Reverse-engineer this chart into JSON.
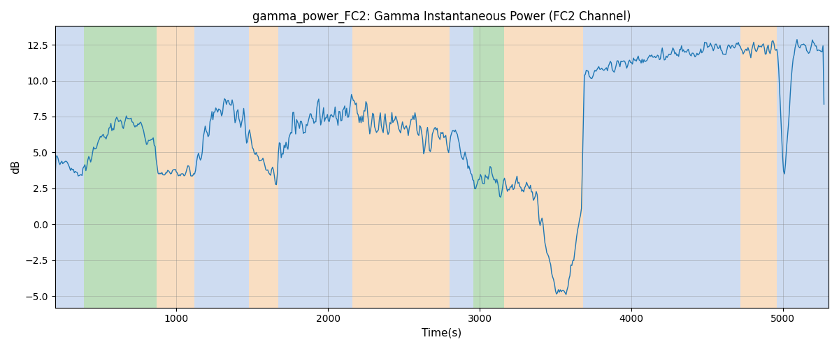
{
  "title": "gamma_power_FC2: Gamma Instantaneous Power (FC2 Channel)",
  "xlabel": "Time(s)",
  "ylabel": "dB",
  "xlim": [
    200,
    5300
  ],
  "ylim": [
    -5.8,
    13.8
  ],
  "figsize": [
    12,
    5
  ],
  "dpi": 100,
  "line_color": "#1f77b4",
  "line_width": 1.0,
  "bg_bands": [
    {
      "xmin": 200,
      "xmax": 390,
      "color": "#aec6e8",
      "alpha": 0.6
    },
    {
      "xmin": 390,
      "xmax": 870,
      "color": "#90c98e",
      "alpha": 0.6
    },
    {
      "xmin": 870,
      "xmax": 1120,
      "color": "#f5c89a",
      "alpha": 0.6
    },
    {
      "xmin": 1120,
      "xmax": 1480,
      "color": "#aec6e8",
      "alpha": 0.6
    },
    {
      "xmin": 1480,
      "xmax": 1670,
      "color": "#f5c89a",
      "alpha": 0.6
    },
    {
      "xmin": 1670,
      "xmax": 2160,
      "color": "#aec6e8",
      "alpha": 0.6
    },
    {
      "xmin": 2160,
      "xmax": 2800,
      "color": "#f5c89a",
      "alpha": 0.6
    },
    {
      "xmin": 2800,
      "xmax": 2960,
      "color": "#aec6e8",
      "alpha": 0.6
    },
    {
      "xmin": 2960,
      "xmax": 3160,
      "color": "#90c98e",
      "alpha": 0.6
    },
    {
      "xmin": 3160,
      "xmax": 3680,
      "color": "#f5c89a",
      "alpha": 0.6
    },
    {
      "xmin": 3680,
      "xmax": 4720,
      "color": "#aec6e8",
      "alpha": 0.6
    },
    {
      "xmin": 4720,
      "xmax": 4960,
      "color": "#f5c89a",
      "alpha": 0.6
    },
    {
      "xmin": 4960,
      "xmax": 5300,
      "color": "#aec6e8",
      "alpha": 0.6
    }
  ],
  "xticks": [
    1000,
    2000,
    3000,
    4000,
    5000
  ],
  "yticks": [
    -5.0,
    -2.5,
    0.0,
    2.5,
    5.0,
    7.5,
    10.0,
    12.5
  ],
  "seed": 42
}
